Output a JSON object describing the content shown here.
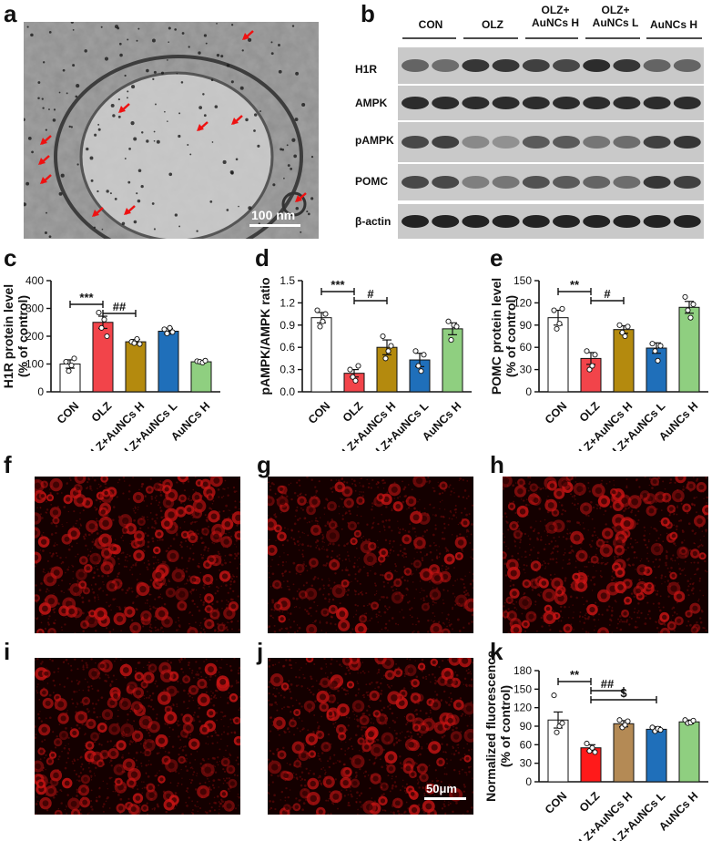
{
  "panels": {
    "a": "a",
    "b": "b",
    "c": "c",
    "d": "d",
    "e": "e",
    "f": "f",
    "g": "g",
    "h": "h",
    "i": "i",
    "j": "j",
    "k": "k"
  },
  "em_image": {
    "scale_bar": "100 nm"
  },
  "fluor_image": {
    "scale_bar": "50μm"
  },
  "western_blot": {
    "lanes": [
      "CON",
      "OLZ",
      "OLZ+\nAuNCs H",
      "OLZ+\nAuNCs L",
      "AuNCs H"
    ],
    "proteins": [
      "H1R",
      "AMPK",
      "pAMPK",
      "POMC",
      "β-actin"
    ]
  },
  "colors": {
    "CON": "#ffffff",
    "OLZ": "#f2444a",
    "OLZ+AuNCs H": "#b48a0e",
    "OLZ+AuNCs L": "#1f6fba",
    "AuNCs H": "#8fcf80",
    "OLZ_k": "#ff1a1a",
    "OLZ+AuNCs H_k": "#b48a55"
  },
  "chart_data": [
    {
      "id": "c",
      "type": "bar",
      "categories": [
        "CON",
        "OLZ",
        "OLZ+AuNCs H",
        "OLZ+AuNCs L",
        "AuNCs H"
      ],
      "values": [
        100,
        250,
        180,
        218,
        108
      ],
      "errors": [
        15,
        22,
        8,
        10,
        3
      ],
      "points": [
        [
          108,
          75,
          95,
          120
        ],
        [
          285,
          230,
          260,
          200
        ],
        [
          180,
          175,
          190,
          172
        ],
        [
          225,
          210,
          230,
          215
        ],
        [
          110,
          108,
          105,
          112
        ]
      ],
      "ylabel": "H1R protein level\n(% of control)",
      "ylim": [
        0,
        400
      ],
      "yticks": [
        0,
        100,
        200,
        300,
        400
      ],
      "significance": [
        {
          "from": 0,
          "to": 1,
          "label": "***"
        },
        {
          "from": 1,
          "to": 2,
          "label": "##"
        }
      ]
    },
    {
      "id": "d",
      "type": "bar",
      "categories": [
        "CON",
        "OLZ",
        "OLZ+AuNCs H",
        "OLZ+AuNCs L",
        "AuNCs H"
      ],
      "values": [
        1.0,
        0.25,
        0.6,
        0.43,
        0.85
      ],
      "errors": [
        0.07,
        0.05,
        0.1,
        0.09,
        0.08
      ],
      "points": [
        [
          1.1,
          0.88,
          0.95,
          1.05
        ],
        [
          0.3,
          0.2,
          0.15,
          0.35
        ],
        [
          0.75,
          0.45,
          0.55,
          0.62
        ],
        [
          0.55,
          0.35,
          0.28,
          0.5
        ],
        [
          0.95,
          0.7,
          0.9,
          0.88
        ]
      ],
      "ylabel": "pAMPK/AMPK ratio",
      "ylim": [
        0,
        1.5
      ],
      "yticks": [
        0.0,
        0.3,
        0.6,
        0.9,
        1.2,
        1.5
      ],
      "significance": [
        {
          "from": 0,
          "to": 1,
          "label": "***"
        },
        {
          "from": 1,
          "to": 2,
          "label": "#"
        }
      ]
    },
    {
      "id": "e",
      "type": "bar",
      "categories": [
        "CON",
        "OLZ",
        "OLZ+AuNCs H",
        "OLZ+AuNCs L",
        "AuNCs H"
      ],
      "values": [
        100,
        45,
        84,
        59,
        114
      ],
      "errors": [
        10,
        8,
        5,
        7,
        8
      ],
      "points": [
        [
          110,
          85,
          92,
          112
        ],
        [
          55,
          30,
          35,
          50
        ],
        [
          90,
          80,
          75,
          88
        ],
        [
          65,
          55,
          42,
          62
        ],
        [
          128,
          110,
          100,
          118
        ]
      ],
      "ylabel": "POMC protein level\n(% of control)",
      "ylim": [
        0,
        150
      ],
      "yticks": [
        0,
        30,
        60,
        90,
        120,
        150
      ],
      "significance": [
        {
          "from": 0,
          "to": 1,
          "label": "**"
        },
        {
          "from": 1,
          "to": 2,
          "label": "#"
        }
      ]
    },
    {
      "id": "k",
      "type": "bar",
      "categories": [
        "CON",
        "OLZ",
        "OLZ+AuNCs H",
        "OLZ+AuNCs L",
        "AuNCs H"
      ],
      "values": [
        100,
        55,
        94,
        85,
        97
      ],
      "errors": [
        13,
        5,
        5,
        4,
        3
      ],
      "points": [
        [
          140,
          80,
          90,
          95
        ],
        [
          62,
          50,
          55,
          48
        ],
        [
          100,
          88,
          92,
          98
        ],
        [
          88,
          82,
          86,
          84
        ],
        [
          100,
          95,
          96,
          99
        ]
      ],
      "ylabel": "Normalized fluorescence\n(% of control)",
      "ylim": [
        0,
        180
      ],
      "yticks": [
        0,
        30,
        60,
        90,
        120,
        150,
        180
      ],
      "significance": [
        {
          "from": 0,
          "to": 1,
          "label": "**"
        },
        {
          "from": 1,
          "to": 2,
          "label": "##"
        },
        {
          "from": 1,
          "to": 3,
          "label": "$"
        }
      ]
    }
  ]
}
